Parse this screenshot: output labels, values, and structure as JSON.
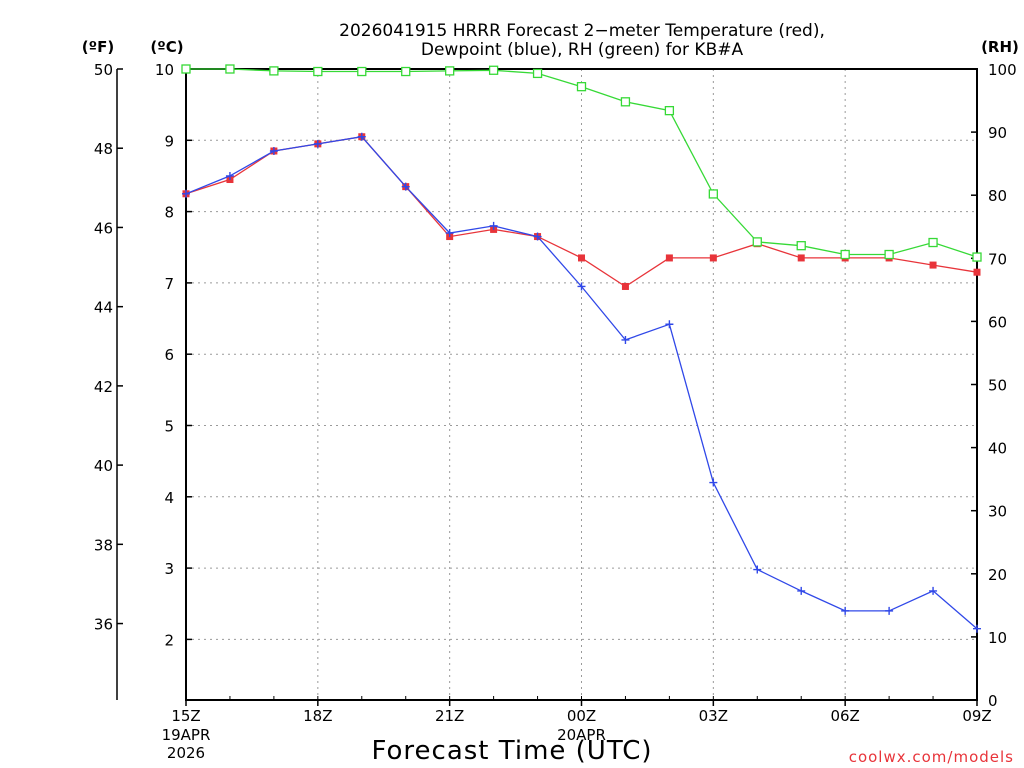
{
  "chart_data": {
    "type": "line",
    "title_line1": "2026041915 HRRR Forecast 2−meter Temperature (red),",
    "title_line2": "Dewpoint (blue), RH (green) for KB#A",
    "xlabel": "Forecast Time (UTC)",
    "credit": "coolwx.com/models",
    "units": {
      "fahrenheit": "(ºF)",
      "celsius": "(ºC)",
      "rh": "(RH)"
    },
    "left_f_ticks": [
      "50",
      "48",
      "46",
      "44",
      "42",
      "40",
      "38",
      "36"
    ],
    "left_c_ticks": [
      "10",
      "9",
      "8",
      "7",
      "6",
      "5",
      "4",
      "3",
      "2"
    ],
    "right_rh_ticks": [
      "100",
      "90",
      "80",
      "70",
      "60",
      "50",
      "40",
      "30",
      "20",
      "10",
      "0"
    ],
    "x_ticks": [
      {
        "hour": 0,
        "label": "15Z",
        "sub1": "19APR",
        "sub2": "2026"
      },
      {
        "hour": 3,
        "label": "18Z"
      },
      {
        "hour": 6,
        "label": "21Z"
      },
      {
        "hour": 9,
        "label": "00Z",
        "sub1": "20APR"
      },
      {
        "hour": 12,
        "label": "03Z"
      },
      {
        "hour": 15,
        "label": "06Z"
      },
      {
        "hour": 18,
        "label": "09Z"
      }
    ],
    "x": [
      0,
      1,
      2,
      3,
      4,
      5,
      6,
      7,
      8,
      9,
      10,
      11,
      12,
      13,
      14,
      15,
      16,
      17,
      18
    ],
    "ylim_celsius": [
      1.15,
      10.0
    ],
    "ylim_rh": [
      0,
      100
    ],
    "series": [
      {
        "name": "Temperature",
        "unit": "C",
        "color": "#e8343a",
        "marker": "filled-square",
        "values": [
          8.25,
          8.45,
          8.85,
          8.95,
          9.05,
          8.35,
          7.65,
          7.75,
          7.65,
          7.35,
          6.95,
          7.35,
          7.35,
          7.55,
          7.35,
          7.35,
          7.35,
          7.25,
          7.15
        ]
      },
      {
        "name": "Dewpoint",
        "unit": "C",
        "color": "#3048e8",
        "marker": "plus",
        "values": [
          8.25,
          8.5,
          8.85,
          8.95,
          9.05,
          8.35,
          7.7,
          7.8,
          7.65,
          6.95,
          6.2,
          6.42,
          4.2,
          2.98,
          2.68,
          2.4,
          2.4,
          2.68,
          2.15
        ]
      },
      {
        "name": "RH",
        "unit": "%",
        "color": "#36d936",
        "marker": "open-square",
        "values": [
          100,
          100,
          99.7,
          99.6,
          99.6,
          99.6,
          99.7,
          99.8,
          99.3,
          97.2,
          94.8,
          93.4,
          80.2,
          72.6,
          72.0,
          70.6,
          70.6,
          72.5,
          70.2
        ]
      }
    ]
  }
}
